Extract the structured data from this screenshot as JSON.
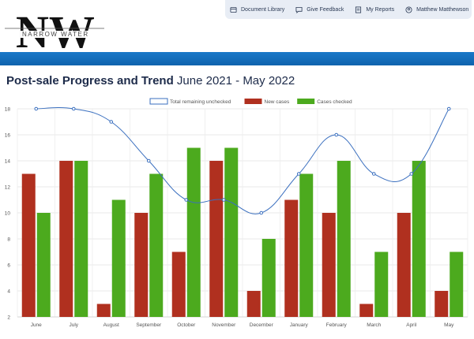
{
  "header": {
    "logo": {
      "letters": "NW",
      "text": "NARROW WATER"
    },
    "nav": [
      {
        "label": "Document Library",
        "icon": "document-icon"
      },
      {
        "label": "Give Feedback",
        "icon": "feedback-icon"
      },
      {
        "label": "My Reports",
        "icon": "reports-icon"
      },
      {
        "label": "Matthew Matthewson",
        "icon": "user-icon"
      }
    ]
  },
  "page": {
    "title_bold": "Post-sale Progress and Trend",
    "title_range": "June 2021 - May 2022"
  },
  "chart_data": {
    "type": "bar",
    "categories": [
      "June",
      "July",
      "August",
      "September",
      "October",
      "November",
      "December",
      "January",
      "February",
      "March",
      "April",
      "May"
    ],
    "series": [
      {
        "name": "Total remaining unchecked",
        "type": "line",
        "color": "#3a6fbf",
        "values": [
          18,
          18,
          17,
          14,
          11,
          11,
          10,
          13,
          16,
          13,
          13,
          18
        ]
      },
      {
        "name": "New cases",
        "type": "bar",
        "color": "#b0301f",
        "values": [
          13,
          14,
          3,
          10,
          7,
          14,
          4,
          11,
          10,
          3,
          10,
          4
        ]
      },
      {
        "name": "Cases checked",
        "type": "bar",
        "color": "#4caa1e",
        "values": [
          10,
          14,
          11,
          13,
          15,
          15,
          8,
          13,
          14,
          7,
          14,
          7
        ]
      }
    ],
    "yticks": [
      2,
      4,
      6,
      8,
      10,
      12,
      14,
      16,
      18
    ],
    "ylim": [
      2,
      18
    ],
    "grid": true,
    "legend_position": "top-center"
  }
}
